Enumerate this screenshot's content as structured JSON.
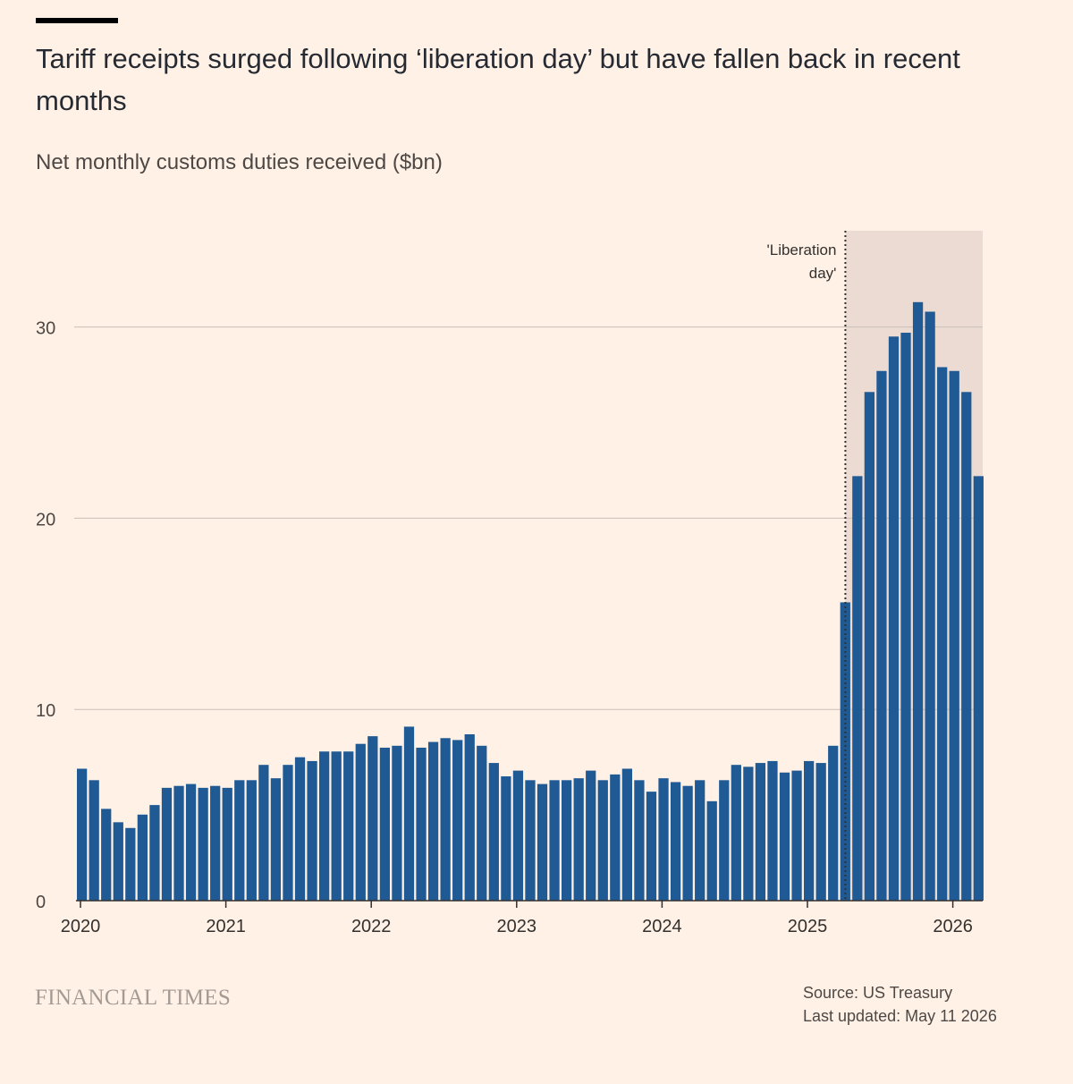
{
  "header": {
    "title": "Tariff receipts surged following ‘liberation day’ but have fallen back in recent months",
    "subtitle": "Net monthly customs duties received ($bn)"
  },
  "chart_data": {
    "type": "bar",
    "x_start": "2020-01",
    "x_end": "2026-03",
    "yticks": [
      0,
      10,
      20,
      30
    ],
    "ylim": [
      0,
      35
    ],
    "xticks": [
      "2020",
      "2021",
      "2022",
      "2023",
      "2024",
      "2025",
      "2026"
    ],
    "series_color": "#1f5a95",
    "shade_color": "#ebdbd2",
    "annotation": {
      "label_line1": "'Liberation",
      "label_line2": "day'",
      "date": "2025-04"
    },
    "values": [
      6.9,
      6.3,
      4.8,
      4.1,
      3.8,
      4.5,
      5.0,
      5.9,
      6.0,
      6.1,
      5.9,
      6.0,
      5.9,
      6.3,
      6.3,
      7.1,
      6.4,
      7.1,
      7.5,
      7.3,
      7.8,
      7.8,
      7.8,
      8.2,
      8.6,
      8.0,
      8.1,
      9.1,
      8.0,
      8.3,
      8.5,
      8.4,
      8.7,
      8.1,
      7.2,
      6.5,
      6.8,
      6.3,
      6.1,
      6.3,
      6.3,
      6.4,
      6.8,
      6.3,
      6.6,
      6.9,
      6.3,
      5.7,
      6.4,
      6.2,
      6.0,
      6.3,
      5.2,
      6.3,
      7.1,
      7.0,
      7.2,
      7.3,
      6.7,
      6.8,
      7.3,
      7.2,
      8.1,
      15.6,
      22.2,
      26.6,
      27.7,
      29.5,
      29.7,
      31.3,
      30.8,
      27.9,
      27.7,
      26.6,
      22.2
    ]
  },
  "source": "Source: US Treasury",
  "updated": "Last updated: May 11 2026",
  "brand": "FINANCIAL TIMES"
}
